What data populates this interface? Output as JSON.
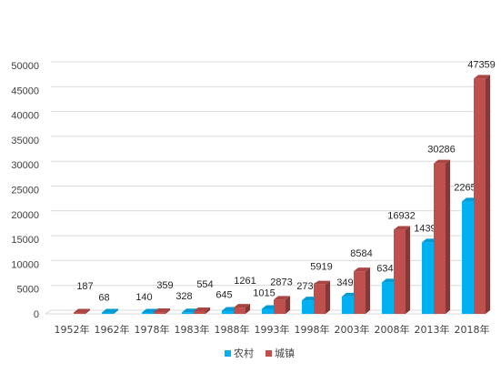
{
  "chart_data": {
    "type": "bar",
    "title": "",
    "xlabel": "",
    "ylabel": "",
    "ylim": [
      0,
      50000
    ],
    "yticks": [
      0,
      5000,
      10000,
      15000,
      20000,
      25000,
      30000,
      35000,
      40000,
      45000,
      50000
    ],
    "grid": true,
    "legend_position": "bottom",
    "categories": [
      "1952年",
      "1962年",
      "1978年",
      "1983年",
      "1988年",
      "1993年",
      "1998年",
      "2003年",
      "2008年",
      "2013年",
      "2018年"
    ],
    "series": [
      {
        "name": "农村",
        "color": "#00B0F0",
        "values": [
          null,
          68,
          140,
          328,
          645,
          1015,
          2730,
          3497,
          6349,
          14390,
          22652
        ],
        "labels": [
          "",
          "68",
          "140",
          "328",
          "645",
          "1015",
          "2730",
          "3497",
          "6349",
          "14390",
          "22652"
        ]
      },
      {
        "name": "城镇",
        "color": "#C0504D",
        "values": [
          187,
          null,
          359,
          554,
          1261,
          2873,
          5919,
          8584,
          16932,
          30286,
          47359
        ],
        "labels": [
          "187",
          "",
          "359",
          "554",
          "1261",
          "2873",
          "5919",
          "8584",
          "16932",
          "30286",
          "47359"
        ]
      }
    ]
  }
}
